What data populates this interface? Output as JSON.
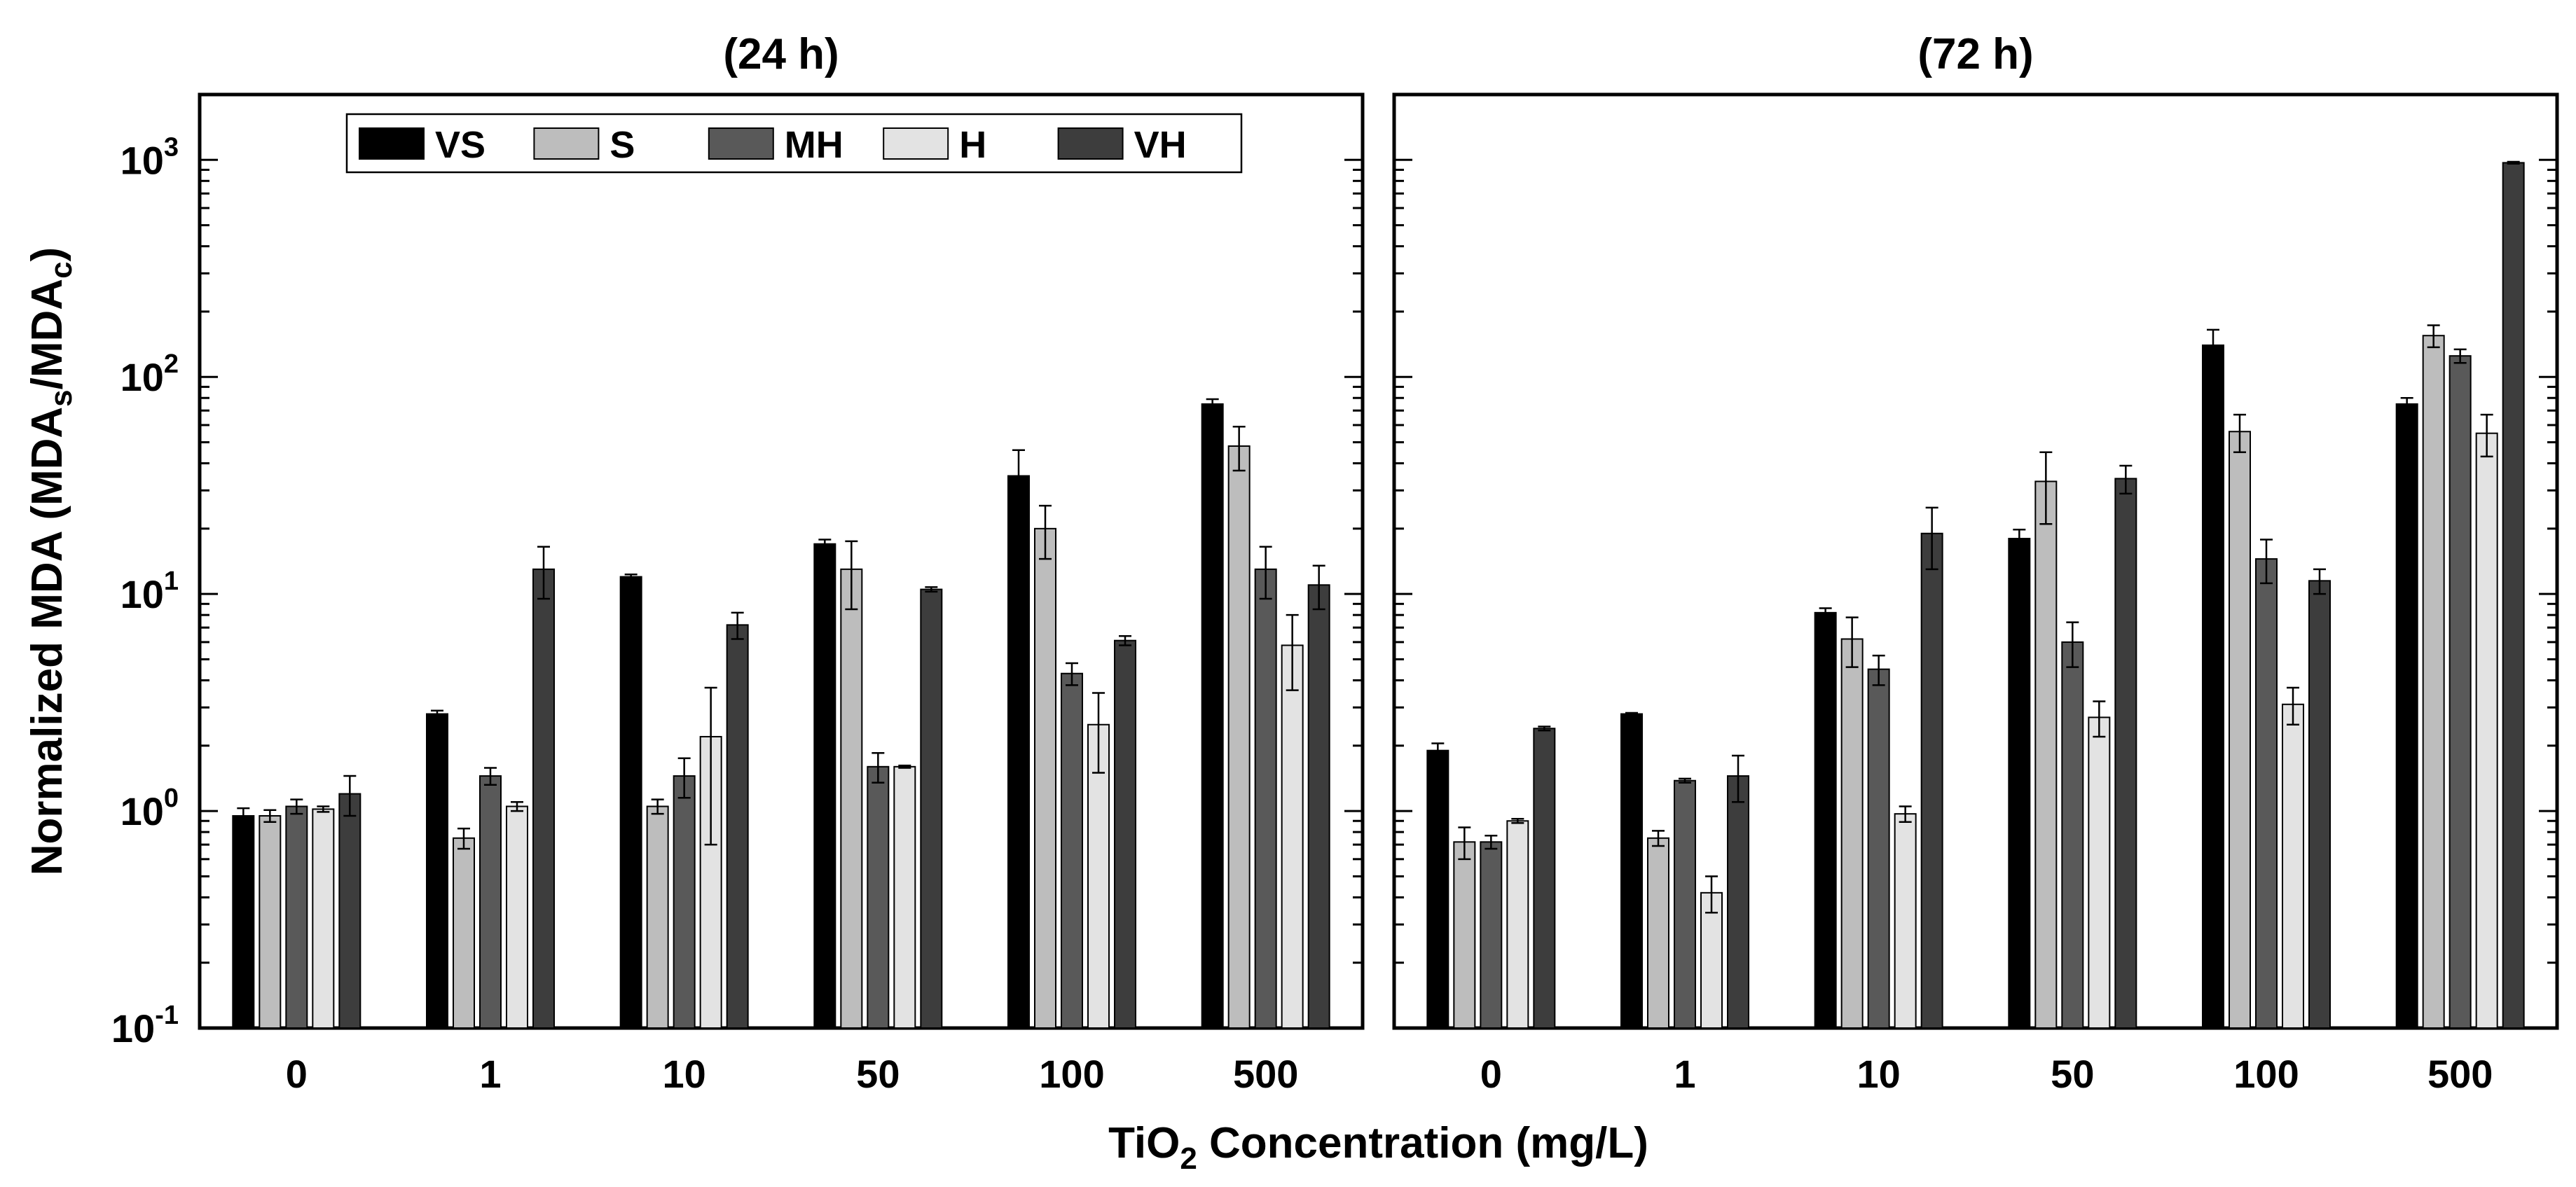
{
  "chart_data": {
    "type": "bar",
    "yscale": "log",
    "ylim": [
      0.1,
      2000
    ],
    "y_ticks": [
      {
        "base": "10",
        "exp": "-1",
        "value": 0.1
      },
      {
        "base": "10",
        "exp": "0",
        "value": 1
      },
      {
        "base": "10",
        "exp": "1",
        "value": 10
      },
      {
        "base": "10",
        "exp": "2",
        "value": 100
      },
      {
        "base": "10",
        "exp": "3",
        "value": 1000
      }
    ],
    "ylabel": {
      "main": "Normalized MDA (MDA",
      "sub1": "s",
      "mid": "/MDA",
      "sub2": "c",
      "end": ")"
    },
    "xlabel": {
      "pre": "TiO",
      "sub": "2",
      "post": " Concentration (mg/L)"
    },
    "categories": [
      "0",
      "1",
      "10",
      "50",
      "100",
      "500"
    ],
    "legend": {
      "position": "top",
      "panel": 0
    },
    "series": [
      {
        "name": "VS",
        "color": "#000000"
      },
      {
        "name": "S",
        "color": "#bdbdbd"
      },
      {
        "name": "MH",
        "color": "#595959"
      },
      {
        "name": "H",
        "color": "#e3e3e3"
      },
      {
        "name": "VH",
        "color": "#3d3d3d"
      }
    ],
    "panels": [
      {
        "title": "(24 h)",
        "values": [
          [
            0.95,
            2.8,
            12,
            17,
            35,
            75
          ],
          [
            0.95,
            0.75,
            1.05,
            13,
            20,
            48
          ],
          [
            1.05,
            1.45,
            1.45,
            1.6,
            4.3,
            13
          ],
          [
            1.02,
            1.05,
            2.2,
            1.6,
            2.5,
            5.8
          ],
          [
            1.2,
            13,
            7.2,
            10.5,
            6.1,
            11
          ]
        ],
        "errors": [
          [
            0.08,
            0.1,
            0.3,
            0.8,
            11,
            4
          ],
          [
            0.06,
            0.08,
            0.08,
            4.5,
            5.5,
            11
          ],
          [
            0.08,
            0.13,
            0.3,
            0.25,
            0.5,
            3.5
          ],
          [
            0.03,
            0.05,
            1.5,
            0.02,
            1.0,
            2.2
          ],
          [
            0.25,
            3.5,
            1.0,
            0.25,
            0.3,
            2.5
          ]
        ]
      },
      {
        "title": "(72 h)",
        "values": [
          [
            1.9,
            2.8,
            8.2,
            18,
            140,
            75
          ],
          [
            0.72,
            0.75,
            6.2,
            33,
            56,
            155
          ],
          [
            0.72,
            1.38,
            4.5,
            6,
            14.5,
            125
          ],
          [
            0.9,
            0.42,
            0.97,
            2.7,
            3.1,
            55
          ],
          [
            2.4,
            1.45,
            19,
            34,
            11.5,
            970
          ]
        ],
        "errors": [
          [
            0.15,
            0.03,
            0.4,
            1.8,
            25,
            5
          ],
          [
            0.12,
            0.06,
            1.6,
            12,
            11,
            18
          ],
          [
            0.05,
            0.03,
            0.7,
            1.4,
            3.3,
            9
          ],
          [
            0.02,
            0.08,
            0.08,
            0.5,
            0.6,
            12
          ],
          [
            0.05,
            0.35,
            6,
            5,
            1.5,
            10
          ]
        ]
      }
    ]
  }
}
